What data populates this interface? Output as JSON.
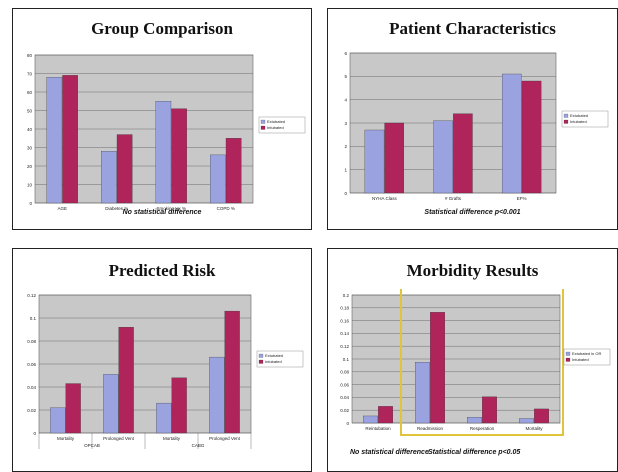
{
  "slides": [
    {
      "title": "Group Comparison",
      "footnote": "No statistical difference",
      "footnote2": ""
    },
    {
      "title": "Patient Characteristics",
      "footnote": "Statistical difference p<0.001",
      "footnote2": ""
    },
    {
      "title": "Predicted Risk",
      "footnote": "",
      "footnote2": ""
    },
    {
      "title": "Morbidity Results",
      "footnote": "No statistical difference",
      "footnote2": "Statistical difference p<0.05"
    }
  ],
  "chart_data": [
    {
      "type": "bar",
      "title": "Group Comparison",
      "categories": [
        "AGE",
        "Diabetes %",
        "Smoking Hx %",
        "COPD %"
      ],
      "ylim": [
        0,
        80
      ],
      "yticks": [
        0,
        10,
        20,
        30,
        40,
        50,
        60,
        70,
        80
      ],
      "grid": true,
      "legend_position": "right",
      "series": [
        {
          "name": "Extubated",
          "color": "#9aa3e0",
          "values": [
            68,
            28,
            55,
            26
          ]
        },
        {
          "name": "Intubated",
          "color": "#b0245c",
          "values": [
            69,
            37,
            51,
            35
          ]
        }
      ]
    },
    {
      "type": "bar",
      "title": "Patient Characteristics",
      "categories": [
        "NYHA Class",
        "# Grafts",
        "EF%"
      ],
      "ylim": [
        0,
        6
      ],
      "yticks": [
        0,
        1,
        2,
        3,
        4,
        5,
        6
      ],
      "grid": true,
      "legend_position": "right",
      "series": [
        {
          "name": "Extubated",
          "color": "#9aa3e0",
          "values": [
            2.7,
            3.1,
            5.1
          ]
        },
        {
          "name": "Intubated",
          "color": "#b0245c",
          "values": [
            3.0,
            3.4,
            4.8
          ]
        }
      ]
    },
    {
      "type": "bar",
      "title": "Predicted Risk",
      "categories": [
        "Mortality",
        "Prolonged Vent",
        "Mortality",
        "Prolonged Vent"
      ],
      "groups": [
        {
          "label": "OPCAB",
          "categories": [
            "Mortality",
            "Prolonged Vent"
          ]
        },
        {
          "label": "CABG",
          "categories": [
            "Mortality",
            "Prolonged Vent"
          ]
        }
      ],
      "ylim": [
        0,
        0.12
      ],
      "yticks": [
        0,
        0.02,
        0.04,
        0.06,
        0.08,
        0.1,
        0.12
      ],
      "grid": true,
      "legend_position": "right",
      "series": [
        {
          "name": "Extubated",
          "color": "#9aa3e0",
          "values": [
            0.022,
            0.051,
            0.026,
            0.066
          ]
        },
        {
          "name": "Intubated",
          "color": "#b0245c",
          "values": [
            0.043,
            0.092,
            0.048,
            0.106
          ]
        }
      ]
    },
    {
      "type": "bar",
      "title": "Morbidity Results",
      "categories": [
        "Reintubation",
        "Readmission",
        "Resperation",
        "Mortality"
      ],
      "ylim": [
        0,
        0.2
      ],
      "yticks": [
        0,
        0.02,
        0.04,
        0.06,
        0.08,
        0.1,
        0.12,
        0.14,
        0.16,
        0.18,
        0.2
      ],
      "grid": true,
      "legend_position": "right",
      "highlight": {
        "from_category": 1,
        "to_category": 3,
        "color": "#e0c43a"
      },
      "series": [
        {
          "name": "Extubated in OR",
          "color": "#9aa3e0",
          "values": [
            0.011,
            0.095,
            0.009,
            0.007
          ]
        },
        {
          "name": "Intubated",
          "color": "#b0245c",
          "values": [
            0.026,
            0.173,
            0.041,
            0.022
          ]
        }
      ]
    }
  ]
}
